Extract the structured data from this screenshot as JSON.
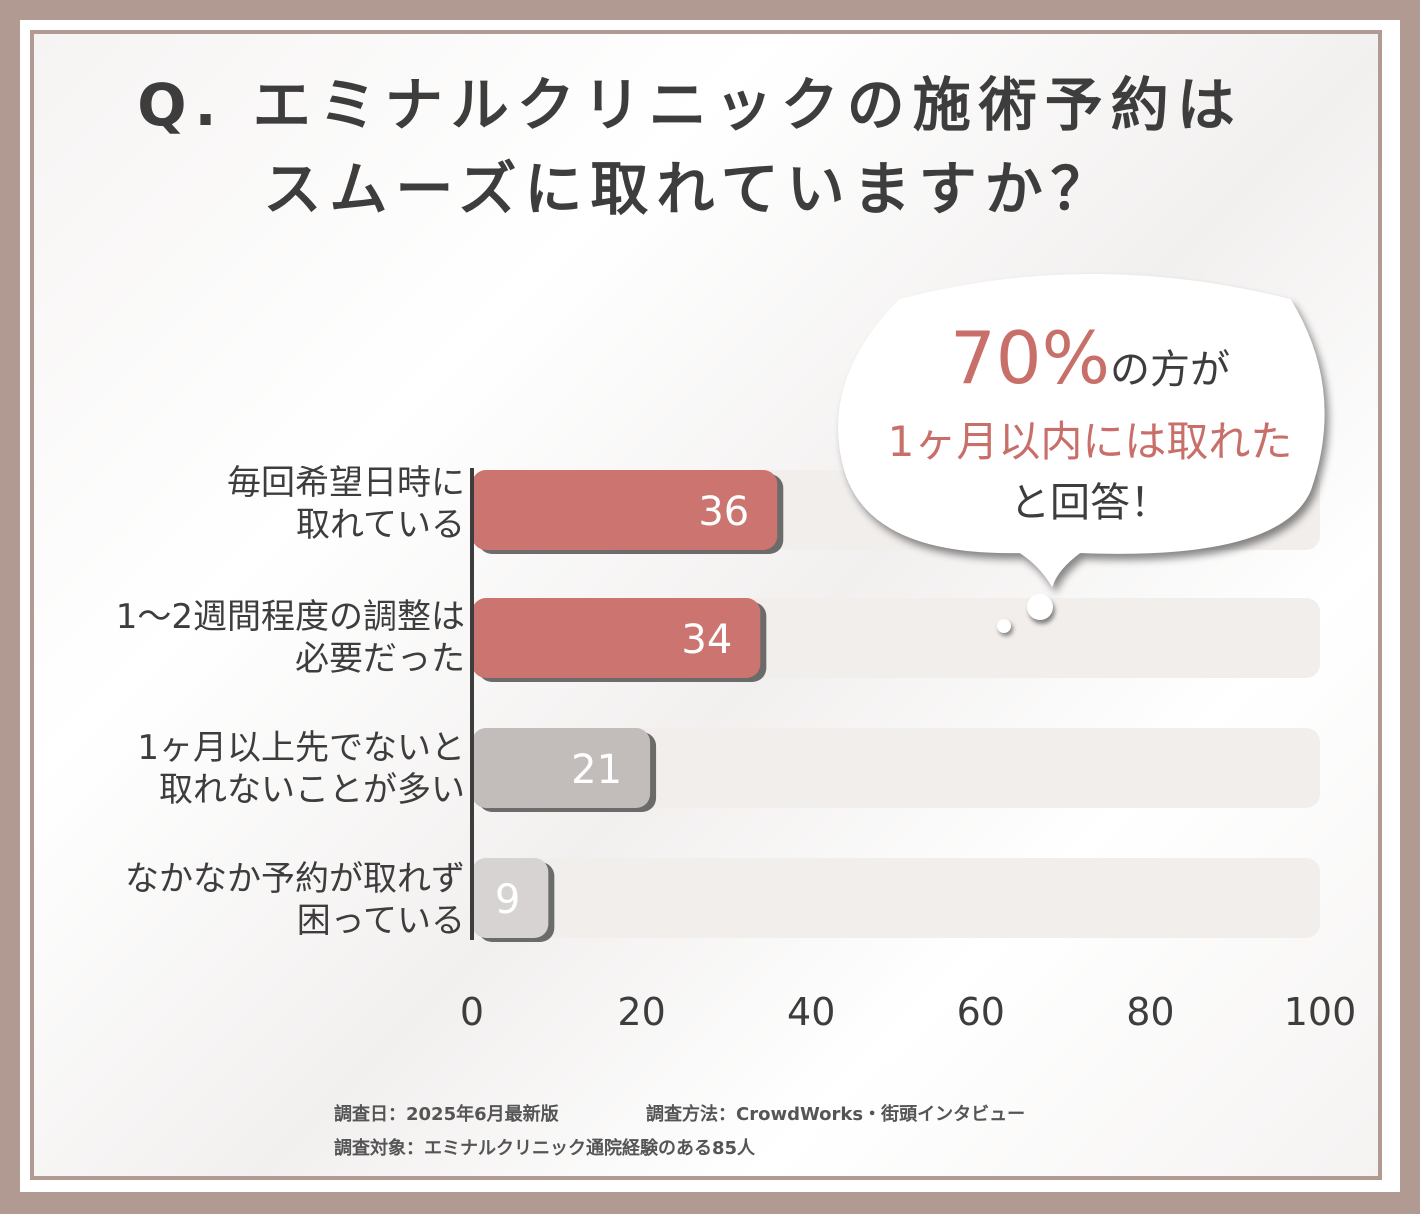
{
  "title": {
    "line1": "Q. エミナルクリニックの施術予約は",
    "line2": "スムーズに取れていますか？"
  },
  "callout": {
    "highlight": "70%",
    "line1_rest": "の方が",
    "line2": "1ヶ月以内には取れた",
    "line3": "と回答！"
  },
  "colors": {
    "bar_primary": "#cc746f",
    "bar_secondary": "#c2bdbb",
    "bar_tertiary": "#d7d3d2",
    "track": "#f1eeec",
    "accent_text": "#c96f6a",
    "frame": "#b09a92"
  },
  "chart_data": {
    "type": "bar",
    "orientation": "horizontal",
    "categories": [
      [
        "毎回希望日時に",
        "取れている"
      ],
      [
        "1〜2週間程度の調整は",
        "必要だった"
      ],
      [
        "1ヶ月以上先でないと",
        "取れないことが多い"
      ],
      [
        "なかなか予約が取れず",
        "困っている"
      ]
    ],
    "values": [
      36,
      34,
      21,
      9
    ],
    "data_labels": [
      "36",
      "34",
      "21",
      "9"
    ],
    "xlim": [
      0,
      100
    ],
    "xticks": [
      "0",
      "20",
      "40",
      "60",
      "80",
      "100"
    ]
  },
  "footnotes": {
    "date": "調査日：2025年6月最新版",
    "method": "調査方法：CrowdWorks・街頭インタビュー",
    "subject": "調査対象：エミナルクリニック通院経験のある85人"
  }
}
